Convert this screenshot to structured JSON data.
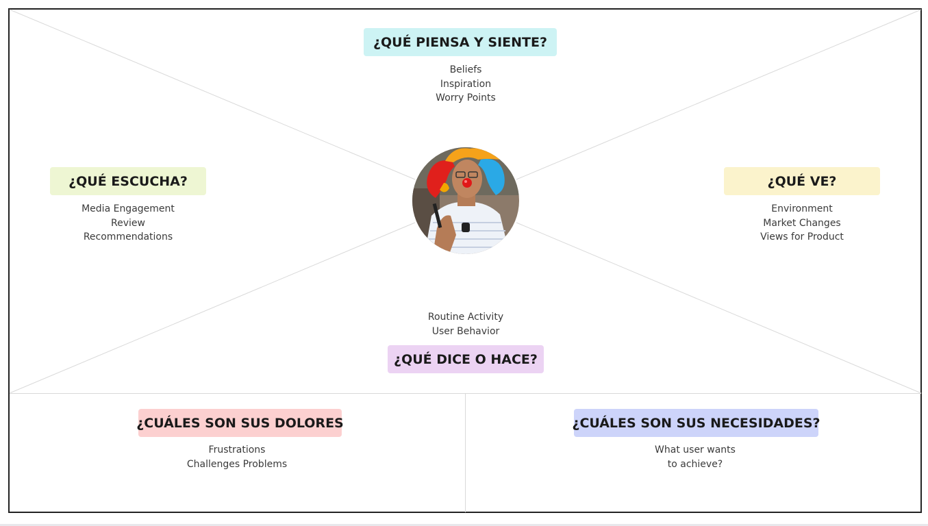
{
  "sections": {
    "think_feel": {
      "title": "¿QUÉ PIENSA Y SIENTE?",
      "color": "#cdf3f4",
      "items": [
        "Beliefs",
        "Inspiration",
        "Worry Points"
      ]
    },
    "hear": {
      "title": "¿QUÉ ESCUCHA?",
      "color": "#eef6d3",
      "items": [
        "Media Engagement",
        "Review",
        "Recommendations"
      ]
    },
    "see": {
      "title": "¿QUÉ VE?",
      "color": "#fbf3cc",
      "items": [
        "Environment",
        "Market Changes",
        "Views for Product"
      ]
    },
    "say_do": {
      "title": "¿QUÉ DICE O HACE?",
      "color": "#ecd3f3",
      "items": [
        "Routine Activity",
        "User Behavior"
      ]
    },
    "pains": {
      "title": "¿CUÁLES SON SUS DOLORES",
      "color": "#fcd0d0",
      "items": [
        "Frustrations",
        "Challenges Problems"
      ]
    },
    "needs": {
      "title": "¿CUÁLES SON SUS NECESIDADES?",
      "color": "#cdd4fa",
      "items": [
        "What user wants",
        "to achieve?"
      ]
    }
  },
  "avatar": {
    "icon": "clown-person-avatar"
  },
  "colors": {
    "border": "#222222",
    "divider": "#d9d9d9"
  }
}
